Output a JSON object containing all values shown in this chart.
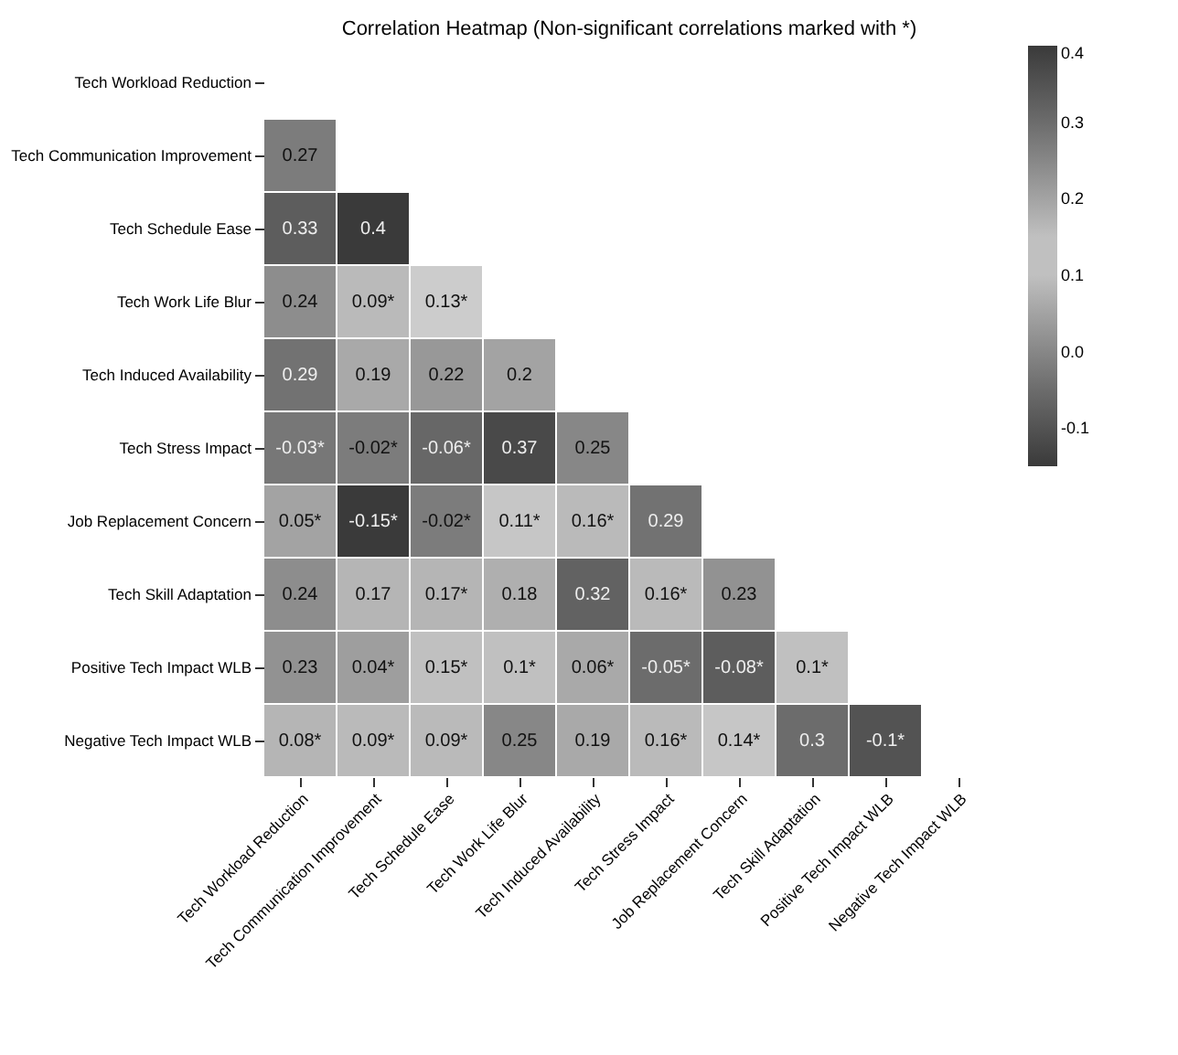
{
  "chart_data": {
    "type": "heatmap",
    "title": "Correlation Heatmap (Non-significant correlations marked with *)",
    "categories": [
      "Tech Workload Reduction",
      "Tech Communication Improvement",
      "Tech Schedule Ease",
      "Tech Work Life Blur",
      "Tech Induced Availability",
      "Tech Stress Impact",
      "Job Replacement Concern",
      "Tech Skill Adaptation",
      "Positive Tech Impact WLB",
      "Negative Tech Impact WLB"
    ],
    "y_categories": [
      "Tech Workload Reduction",
      "Tech Communication Improvement",
      "Tech Schedule Ease",
      "Tech Work Life Blur",
      "Tech Induced Availability",
      "Tech Stress Impact",
      "Job Replacement Concern",
      "Tech Skill Adaptation",
      "Positive Tech Impact WLB",
      "Negative Tech Impact WLB"
    ],
    "cells": [
      [
        null,
        null,
        null,
        null,
        null,
        null,
        null,
        null,
        null,
        null
      ],
      [
        0.27,
        null,
        null,
        null,
        null,
        null,
        null,
        null,
        null,
        null
      ],
      [
        0.33,
        0.4,
        null,
        null,
        null,
        null,
        null,
        null,
        null,
        null
      ],
      [
        0.24,
        0.09,
        0.13,
        null,
        null,
        null,
        null,
        null,
        null,
        null
      ],
      [
        0.29,
        0.19,
        0.22,
        0.2,
        null,
        null,
        null,
        null,
        null,
        null
      ],
      [
        -0.03,
        -0.02,
        -0.06,
        0.37,
        0.25,
        null,
        null,
        null,
        null,
        null
      ],
      [
        0.05,
        -0.15,
        -0.02,
        0.11,
        0.16,
        0.29,
        null,
        null,
        null,
        null
      ],
      [
        0.24,
        0.17,
        0.17,
        0.18,
        0.32,
        0.16,
        0.23,
        null,
        null,
        null
      ],
      [
        0.23,
        0.04,
        0.15,
        0.1,
        0.06,
        -0.05,
        -0.08,
        0.1,
        null,
        null
      ],
      [
        0.08,
        0.09,
        0.09,
        0.25,
        0.19,
        0.16,
        0.14,
        0.3,
        -0.1,
        null
      ]
    ],
    "cell_labels": [
      [
        null,
        null,
        null,
        null,
        null,
        null,
        null,
        null,
        null,
        null
      ],
      [
        "0.27",
        null,
        null,
        null,
        null,
        null,
        null,
        null,
        null,
        null
      ],
      [
        "0.33",
        "0.4",
        null,
        null,
        null,
        null,
        null,
        null,
        null,
        null
      ],
      [
        "0.24",
        "0.09*",
        "0.13*",
        null,
        null,
        null,
        null,
        null,
        null,
        null
      ],
      [
        "0.29",
        "0.19",
        "0.22",
        "0.2",
        null,
        null,
        null,
        null,
        null,
        null
      ],
      [
        "-0.03*",
        "-0.02*",
        "-0.06*",
        "0.37",
        "0.25",
        null,
        null,
        null,
        null,
        null
      ],
      [
        "0.05*",
        "-0.15*",
        "-0.02*",
        "0.11*",
        "0.16*",
        "0.29",
        null,
        null,
        null,
        null
      ],
      [
        "0.24",
        "0.17",
        "0.17*",
        "0.18",
        "0.32",
        "0.16*",
        "0.23",
        null,
        null,
        null
      ],
      [
        "0.23",
        "0.04*",
        "0.15*",
        "0.1*",
        "0.06*",
        "-0.05*",
        "-0.08*",
        "0.1*",
        null,
        null
      ],
      [
        "0.08*",
        "0.09*",
        "0.09*",
        "0.25",
        "0.19",
        "0.16*",
        "0.14*",
        "0.3",
        "-0.1*",
        null
      ]
    ],
    "clim": [
      -0.15,
      0.4
    ],
    "cticks": [
      -0.1,
      {
        "value": 0,
        "label": "0.0"
      },
      0.1,
      0.2,
      0.3,
      0.4
    ]
  }
}
